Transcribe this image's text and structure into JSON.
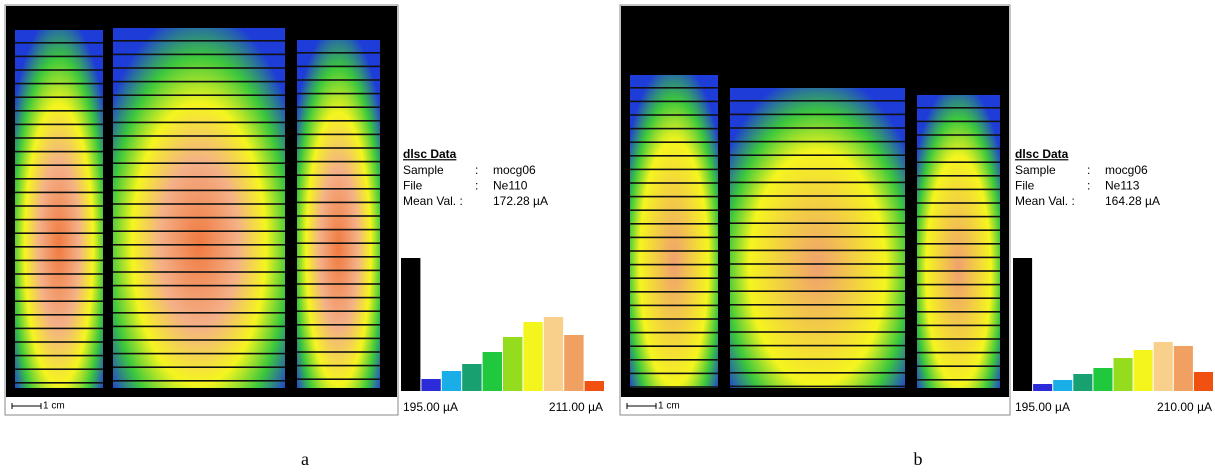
{
  "panels": [
    {
      "caption": "a",
      "scale_label": "1 cm",
      "info": {
        "title": "dlsc Data",
        "rows": [
          {
            "label": "Sample",
            "sep": ":",
            "value": "mocg06"
          },
          {
            "label": "File",
            "sep": ":",
            "value": "Ne110"
          },
          {
            "label": "Mean Val. :",
            "value": "172.28  µA"
          }
        ]
      },
      "histogram": {
        "values": [
          133,
          12,
          20,
          27,
          39,
          54,
          69,
          74,
          56,
          10
        ],
        "colors": [
          "#000000",
          "#2b2bd8",
          "#1aaee8",
          "#18a070",
          "#1fc83c",
          "#96dc1e",
          "#f5f51e",
          "#f8d08c",
          "#f0a060",
          "#f05010"
        ],
        "min_label": "195.00 µA",
        "max_label": "211.00 µA"
      }
    },
    {
      "caption": "b",
      "scale_label": "1 cm",
      "info": {
        "title": "dlsc Data",
        "rows": [
          {
            "label": "Sample",
            "sep": ":",
            "value": "mocg06"
          },
          {
            "label": "File",
            "sep": ":",
            "value": "Ne113"
          },
          {
            "label": "Mean Val. :",
            "value": "164.28  µA"
          }
        ]
      },
      "histogram": {
        "values": [
          133,
          7,
          11,
          17,
          23,
          33,
          41,
          49,
          45,
          19
        ],
        "colors": [
          "#000000",
          "#2b2bd8",
          "#1aaee8",
          "#18a070",
          "#1fc83c",
          "#96dc1e",
          "#f5f51e",
          "#f8d08c",
          "#f0a060",
          "#f05010"
        ],
        "min_label": "195.00 µA",
        "max_label": "210.00 µA"
      }
    }
  ]
}
